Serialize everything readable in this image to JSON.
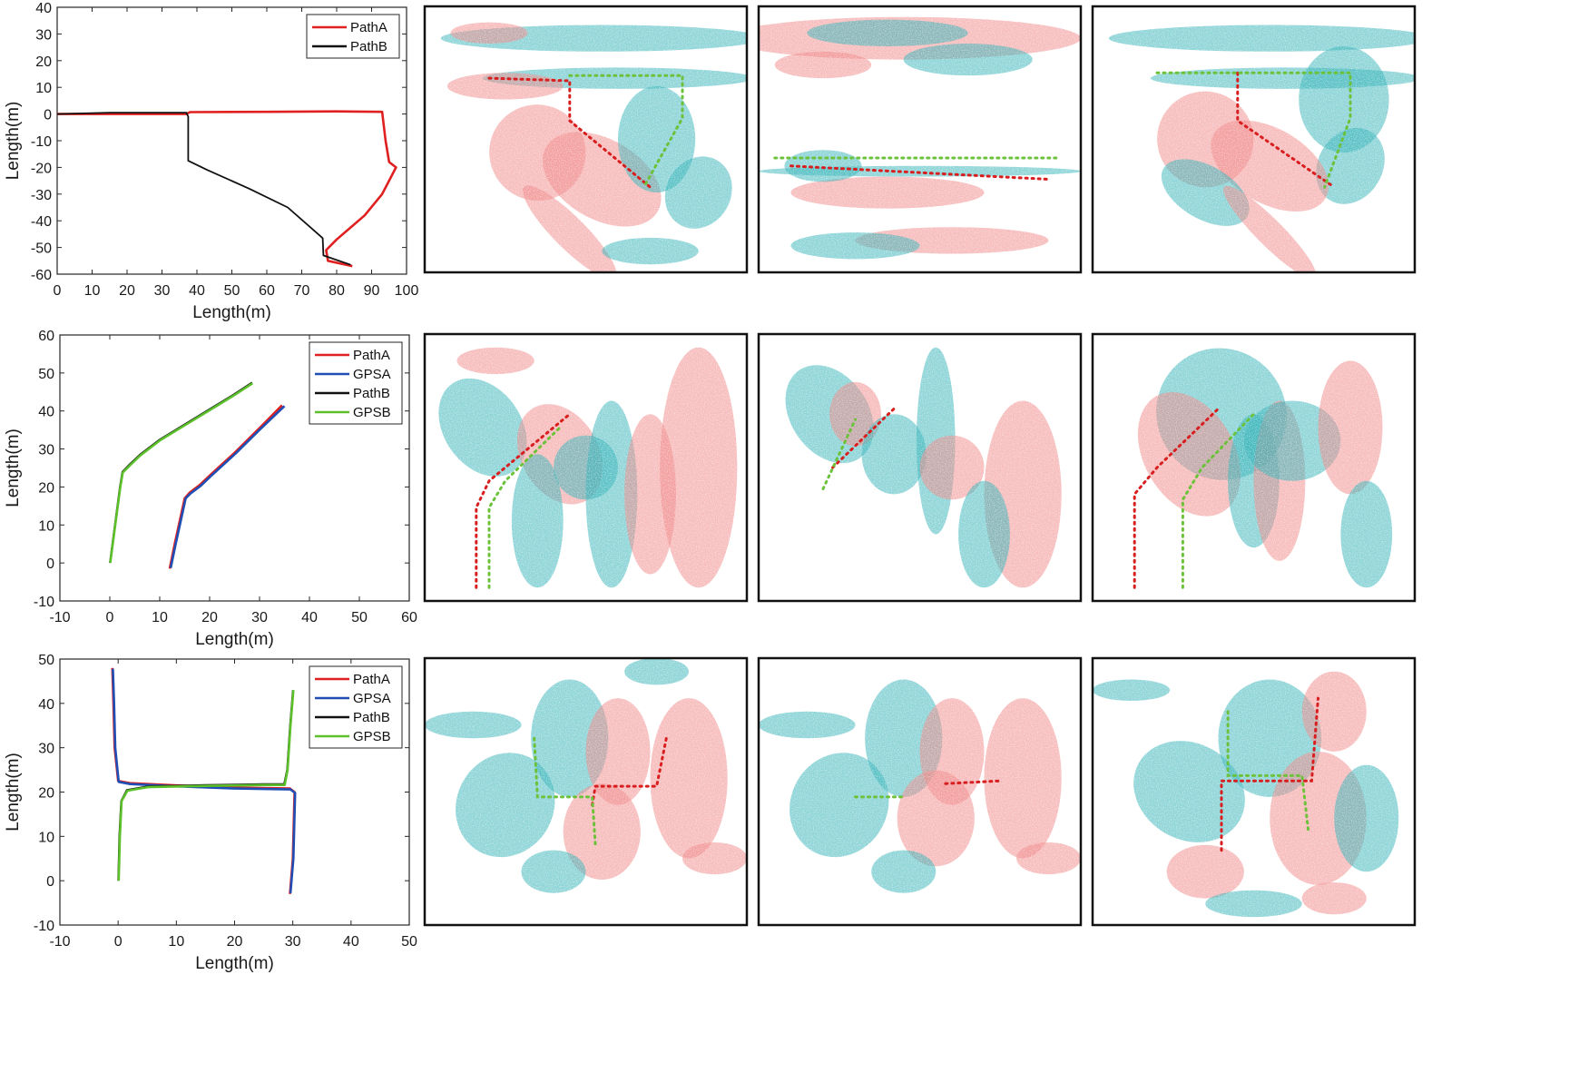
{
  "colors": {
    "cyan": "#33b2b8",
    "pink": "#f08686",
    "red": "#e02020",
    "blue": "#1f4fb5",
    "black": "#111111",
    "green": "#5cc02a"
  },
  "chart_data": [
    {
      "type": "line",
      "xlabel": "Length(m)",
      "ylabel": "Length(m)",
      "xlim": [
        0,
        100
      ],
      "ylim": [
        -60,
        40
      ],
      "xticks": [
        "0",
        "10",
        "20",
        "30",
        "40",
        "50",
        "60",
        "70",
        "80",
        "90",
        "100"
      ],
      "yticks": [
        "-60",
        "-50",
        "-40",
        "-30",
        "-20",
        "-10",
        "0",
        "10",
        "20",
        "30",
        "40"
      ],
      "legend_position": "top-right",
      "series": [
        {
          "name": "PathA",
          "color": "red",
          "x": [
            0,
            37,
            38,
            60,
            80,
            93,
            94,
            95,
            97,
            93,
            88,
            80,
            77,
            77.5,
            84.5
          ],
          "y": [
            0,
            0,
            0.7,
            0.8,
            1,
            0.8,
            -10,
            -18,
            -20,
            -30,
            -38,
            -47,
            -51,
            -55,
            -57
          ]
        },
        {
          "name": "PathB",
          "color": "black",
          "x": [
            0,
            15,
            37,
            37.5,
            37.5,
            43,
            55,
            66,
            76,
            76.2,
            84
          ],
          "y": [
            0,
            0.5,
            0.5,
            -1,
            -17.5,
            -21,
            -28,
            -35,
            -46.5,
            -53,
            -56.5
          ]
        }
      ]
    },
    {
      "type": "line",
      "xlabel": "Length(m)",
      "ylabel": "Length(m)",
      "xlim": [
        -10,
        60
      ],
      "ylim": [
        -10,
        60
      ],
      "xticks": [
        "-10",
        "0",
        "10",
        "20",
        "30",
        "40",
        "50",
        "60"
      ],
      "yticks": [
        "-10",
        "0",
        "10",
        "20",
        "30",
        "40",
        "50",
        "60"
      ],
      "legend_position": "top-right",
      "series": [
        {
          "name": "PathA",
          "color": "red",
          "x": [
            12,
            13,
            14,
            15,
            16,
            18,
            20,
            25,
            30,
            34.5
          ],
          "y": [
            -1.5,
            5,
            11,
            17,
            18.5,
            20.5,
            23,
            29,
            35.5,
            41.5
          ]
        },
        {
          "name": "GPSA",
          "color": "blue",
          "x": [
            12.2,
            13.2,
            14.2,
            15.2,
            16.2,
            18.2,
            20.2,
            25.2,
            30.2,
            35
          ],
          "y": [
            -1.3,
            5,
            11,
            17,
            18.3,
            20.3,
            22.8,
            28.8,
            35.3,
            41.3
          ]
        },
        {
          "name": "PathB",
          "color": "black",
          "x": [
            0,
            1,
            2,
            2.5,
            4,
            6,
            10,
            15,
            20,
            25,
            28.5
          ],
          "y": [
            0,
            10,
            20,
            24,
            26,
            28.5,
            32.5,
            36.5,
            40.5,
            44.5,
            47.5
          ]
        },
        {
          "name": "GPSB",
          "color": "green",
          "x": [
            0.1,
            1.1,
            2.1,
            2.6,
            4.1,
            6.1,
            10.1,
            15.1,
            20.1,
            25.1,
            28.6
          ],
          "y": [
            0,
            10,
            20,
            23.8,
            25.8,
            28.3,
            32.3,
            36.3,
            40.3,
            44.3,
            47.3
          ]
        }
      ]
    },
    {
      "type": "line",
      "xlabel": "Length(m)",
      "ylabel": "Length(m)",
      "xlim": [
        -10,
        50
      ],
      "ylim": [
        -10,
        50
      ],
      "xticks": [
        "-10",
        "0",
        "10",
        "20",
        "30",
        "40",
        "50"
      ],
      "yticks": [
        "-10",
        "0",
        "10",
        "20",
        "30",
        "40",
        "50"
      ],
      "legend_position": "top-right",
      "series": [
        {
          "name": "PathA",
          "color": "red",
          "x": [
            -1,
            -0.8,
            -0.6,
            0,
            2,
            10,
            20,
            29.5,
            30.3,
            30,
            29.5
          ],
          "y": [
            48,
            40,
            30,
            22.5,
            22,
            21.5,
            21,
            20.8,
            20,
            5,
            -3
          ]
        },
        {
          "name": "GPSA",
          "color": "blue",
          "x": [
            -0.9,
            -0.7,
            -0.5,
            0.1,
            2.1,
            10.1,
            20.1,
            29.6,
            30.4,
            30.1,
            29.6
          ],
          "y": [
            47.8,
            40,
            30,
            22.3,
            21.8,
            21.3,
            20.8,
            20.6,
            19.8,
            5,
            -2.8
          ]
        },
        {
          "name": "PathB",
          "color": "black",
          "x": [
            0,
            0.2,
            0.5,
            1.5,
            5,
            15,
            25,
            28.5,
            29,
            29.5,
            30
          ],
          "y": [
            0,
            10,
            18,
            20.5,
            21.3,
            21.6,
            21.8,
            21.8,
            25,
            35,
            43
          ]
        },
        {
          "name": "GPSB",
          "color": "green",
          "x": [
            0.1,
            0.3,
            0.6,
            1.6,
            5.1,
            15.1,
            25.1,
            28.6,
            29.1,
            29.6,
            30.1
          ],
          "y": [
            0,
            10,
            18,
            20.3,
            21.1,
            21.4,
            21.6,
            21.6,
            25,
            35,
            43
          ]
        }
      ]
    }
  ]
}
